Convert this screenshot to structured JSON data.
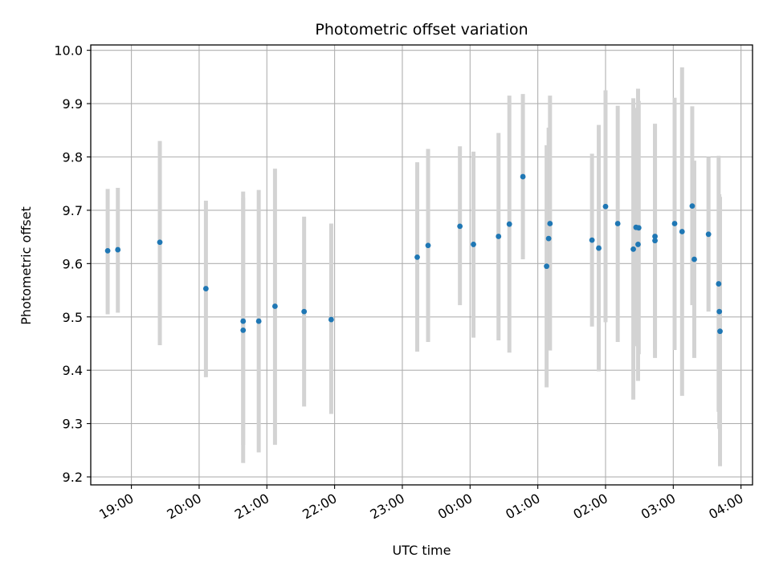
{
  "chart_data": {
    "type": "scatter",
    "title": "Photometric offset variation",
    "xlabel": "UTC time",
    "ylabel": "Photometric offset",
    "grid": true,
    "x_unit": "hours since 18:00 UTC",
    "xlim": [
      0.4,
      10.17
    ],
    "ylim": [
      9.185,
      10.01
    ],
    "x_ticks": [
      {
        "value": 1,
        "label": "19:00"
      },
      {
        "value": 2,
        "label": "20:00"
      },
      {
        "value": 3,
        "label": "21:00"
      },
      {
        "value": 4,
        "label": "22:00"
      },
      {
        "value": 5,
        "label": "23:00"
      },
      {
        "value": 6,
        "label": "00:00"
      },
      {
        "value": 7,
        "label": "01:00"
      },
      {
        "value": 8,
        "label": "02:00"
      },
      {
        "value": 9,
        "label": "03:00"
      },
      {
        "value": 10,
        "label": "04:00"
      }
    ],
    "y_ticks": [
      {
        "value": 9.2,
        "label": "9.2"
      },
      {
        "value": 9.3,
        "label": "9.3"
      },
      {
        "value": 9.4,
        "label": "9.4"
      },
      {
        "value": 9.5,
        "label": "9.5"
      },
      {
        "value": 9.6,
        "label": "9.6"
      },
      {
        "value": 9.7,
        "label": "9.7"
      },
      {
        "value": 9.8,
        "label": "9.8"
      },
      {
        "value": 9.9,
        "label": "9.9"
      },
      {
        "value": 10.0,
        "label": "10.0"
      }
    ],
    "colors": {
      "point": "#1f77b4",
      "errorbar": "#d3d3d3",
      "grid": "#b0b0b0"
    },
    "points": [
      {
        "x": 0.65,
        "y": 9.624,
        "lo": 9.505,
        "hi": 9.74
      },
      {
        "x": 0.8,
        "y": 9.626,
        "lo": 9.508,
        "hi": 9.742
      },
      {
        "x": 1.42,
        "y": 9.64,
        "lo": 9.447,
        "hi": 9.83
      },
      {
        "x": 2.1,
        "y": 9.553,
        "lo": 9.387,
        "hi": 9.718
      },
      {
        "x": 2.65,
        "y": 9.492,
        "lo": 9.26,
        "hi": 9.723
      },
      {
        "x": 2.65,
        "y": 9.475,
        "lo": 9.226,
        "hi": 9.735
      },
      {
        "x": 2.88,
        "y": 9.492,
        "lo": 9.246,
        "hi": 9.738
      },
      {
        "x": 3.12,
        "y": 9.52,
        "lo": 9.26,
        "hi": 9.778
      },
      {
        "x": 3.55,
        "y": 9.51,
        "lo": 9.332,
        "hi": 9.688
      },
      {
        "x": 3.95,
        "y": 9.495,
        "lo": 9.318,
        "hi": 9.675
      },
      {
        "x": 5.22,
        "y": 9.612,
        "lo": 9.435,
        "hi": 9.79
      },
      {
        "x": 5.38,
        "y": 9.634,
        "lo": 9.453,
        "hi": 9.815
      },
      {
        "x": 5.85,
        "y": 9.67,
        "lo": 9.522,
        "hi": 9.82
      },
      {
        "x": 6.05,
        "y": 9.636,
        "lo": 9.461,
        "hi": 9.81
      },
      {
        "x": 6.42,
        "y": 9.651,
        "lo": 9.456,
        "hi": 9.845
      },
      {
        "x": 6.58,
        "y": 9.674,
        "lo": 9.433,
        "hi": 9.915
      },
      {
        "x": 6.78,
        "y": 9.763,
        "lo": 9.608,
        "hi": 9.918
      },
      {
        "x": 7.13,
        "y": 9.595,
        "lo": 9.368,
        "hi": 9.822
      },
      {
        "x": 7.16,
        "y": 9.647,
        "lo": 9.44,
        "hi": 9.855
      },
      {
        "x": 7.18,
        "y": 9.675,
        "lo": 9.437,
        "hi": 9.915
      },
      {
        "x": 7.8,
        "y": 9.644,
        "lo": 9.482,
        "hi": 9.806
      },
      {
        "x": 7.9,
        "y": 9.629,
        "lo": 9.398,
        "hi": 9.86
      },
      {
        "x": 8.0,
        "y": 9.707,
        "lo": 9.49,
        "hi": 9.925
      },
      {
        "x": 8.18,
        "y": 9.675,
        "lo": 9.453,
        "hi": 9.896
      },
      {
        "x": 8.41,
        "y": 9.627,
        "lo": 9.345,
        "hi": 9.91
      },
      {
        "x": 8.45,
        "y": 9.668,
        "lo": 9.445,
        "hi": 9.892
      },
      {
        "x": 8.48,
        "y": 9.636,
        "lo": 9.38,
        "hi": 9.928
      },
      {
        "x": 8.49,
        "y": 9.667,
        "lo": 9.43,
        "hi": 9.905
      },
      {
        "x": 8.73,
        "y": 9.651,
        "lo": 9.44,
        "hi": 9.862
      },
      {
        "x": 8.73,
        "y": 9.643,
        "lo": 9.423,
        "hi": 9.862
      },
      {
        "x": 9.02,
        "y": 9.675,
        "lo": 9.438,
        "hi": 9.911
      },
      {
        "x": 9.13,
        "y": 9.66,
        "lo": 9.352,
        "hi": 9.968
      },
      {
        "x": 9.28,
        "y": 9.708,
        "lo": 9.522,
        "hi": 9.895
      },
      {
        "x": 9.31,
        "y": 9.608,
        "lo": 9.423,
        "hi": 9.793
      },
      {
        "x": 9.52,
        "y": 9.655,
        "lo": 9.51,
        "hi": 9.8
      },
      {
        "x": 9.67,
        "y": 9.562,
        "lo": 9.322,
        "hi": 9.802
      },
      {
        "x": 9.68,
        "y": 9.51,
        "lo": 9.29,
        "hi": 9.73
      },
      {
        "x": 9.69,
        "y": 9.473,
        "lo": 9.22,
        "hi": 9.725
      }
    ]
  }
}
